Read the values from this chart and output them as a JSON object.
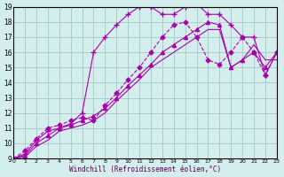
{
  "xlabel": "Windchill (Refroidissement éolien,°C)",
  "bg_color": "#d4eeee",
  "grid_color": "#aacccc",
  "line_color": "#aa00aa",
  "xmin": 0,
  "xmax": 23,
  "ymin": 9,
  "ymax": 19,
  "lines": [
    {
      "x": [
        0,
        1,
        2,
        3,
        4,
        5,
        6,
        7,
        8,
        9,
        10,
        11,
        12,
        13,
        14,
        15,
        16,
        17,
        18,
        19,
        20,
        21,
        22,
        23
      ],
      "y": [
        9,
        9.5,
        10.3,
        11,
        11.2,
        11.5,
        11.7,
        11.5,
        12.5,
        13.3,
        14.2,
        15.0,
        16.0,
        17.0,
        17.8,
        18.0,
        17.0,
        15.5,
        15.2,
        16.0,
        17.0,
        16.0,
        14.5,
        16.0
      ],
      "style": "--",
      "marker": "D",
      "markersize": 2.5
    },
    {
      "x": [
        0,
        1,
        2,
        3,
        4,
        5,
        6,
        7,
        8,
        9,
        10,
        11,
        12,
        13,
        14,
        15,
        16,
        17,
        18,
        19,
        20,
        21,
        22,
        23
      ],
      "y": [
        9,
        9.3,
        10.2,
        10.8,
        11.0,
        11.3,
        12.0,
        16.0,
        17.0,
        17.8,
        18.5,
        19.0,
        19.0,
        18.5,
        18.5,
        19.0,
        19.2,
        18.5,
        18.5,
        17.8,
        17.0,
        17.0,
        14.5,
        16.0
      ],
      "style": "-",
      "marker": "+",
      "markersize": 4
    },
    {
      "x": [
        0,
        1,
        2,
        3,
        4,
        5,
        6,
        7,
        8,
        9,
        10,
        11,
        12,
        13,
        14,
        15,
        16,
        17,
        18,
        19,
        20,
        21,
        22,
        23
      ],
      "y": [
        9,
        9.2,
        10.0,
        10.5,
        11.0,
        11.2,
        11.5,
        11.8,
        12.3,
        13.0,
        13.8,
        14.5,
        15.2,
        16.0,
        16.5,
        17.0,
        17.5,
        18.0,
        17.8,
        15.0,
        15.5,
        16.0,
        15.0,
        16.0
      ],
      "style": "-",
      "marker": "^",
      "markersize": 3
    },
    {
      "x": [
        0,
        1,
        2,
        3,
        4,
        5,
        6,
        7,
        8,
        9,
        10,
        11,
        12,
        13,
        14,
        15,
        16,
        17,
        18,
        19,
        20,
        21,
        22,
        23
      ],
      "y": [
        9,
        9.1,
        9.8,
        10.2,
        10.8,
        11.0,
        11.2,
        11.5,
        12.0,
        12.8,
        13.5,
        14.2,
        15.0,
        15.5,
        16.0,
        16.5,
        17.0,
        17.5,
        17.5,
        15.0,
        15.5,
        16.5,
        15.5,
        15.5
      ],
      "style": "-",
      "marker": null,
      "markersize": 0
    }
  ]
}
